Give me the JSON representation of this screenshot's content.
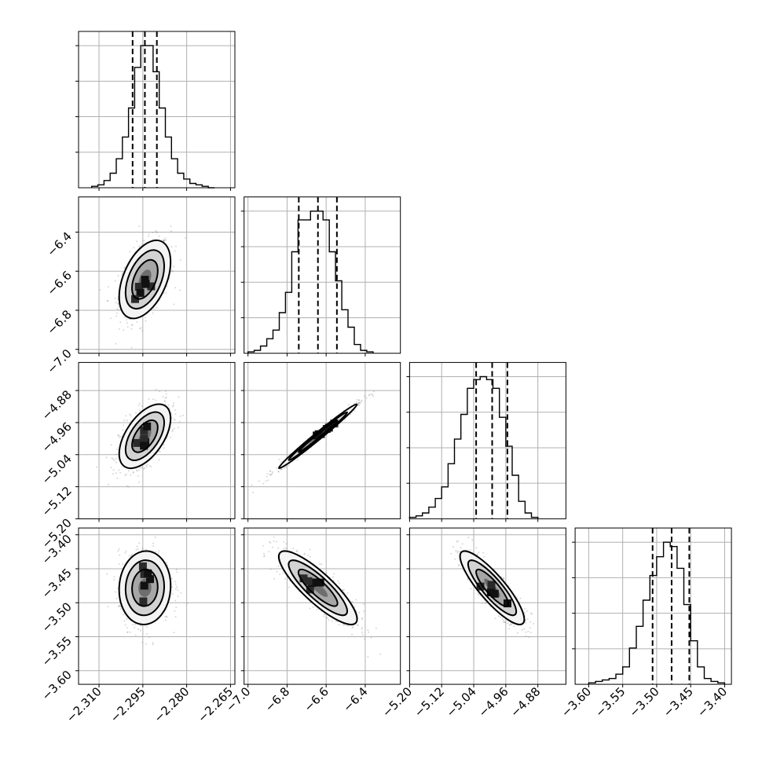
{
  "chart_data": {
    "type": "corner",
    "grid": true,
    "colors": {
      "line": "#000000",
      "grid": "#b0b0b0",
      "points": "#8c8c8c",
      "background": "#ffffff"
    },
    "quantile_levels": [
      0.16,
      0.5,
      0.84
    ],
    "parameters": [
      {
        "range": [
          -2.317,
          -2.2635
        ],
        "ticks": [
          -2.31,
          -2.295,
          -2.28,
          -2.265
        ],
        "tick_labels": [
          "−2.310",
          "−2.295",
          "−2.280",
          "−2.265"
        ],
        "quantiles": [
          -2.2985,
          -2.2943,
          -2.2902
        ],
        "histogram": {
          "bin_edges": [
            -2.3125,
            -2.3104,
            -2.3083,
            -2.3062,
            -2.3041,
            -2.302,
            -2.2999,
            -2.2978,
            -2.2957,
            -2.2936,
            -2.2915,
            -2.2894,
            -2.2873,
            -2.2852,
            -2.2831,
            -2.281,
            -2.2789,
            -2.2768,
            -2.2747,
            -2.2726,
            -2.2705
          ],
          "counts": [
            1,
            2,
            5,
            10,
            20,
            35,
            55,
            83,
            98,
            98,
            80,
            55,
            35,
            20,
            10,
            6,
            3,
            2,
            1,
            0
          ]
        }
      },
      {
        "range": [
          -7.02,
          -6.22
        ],
        "ticks": [
          -7.0,
          -6.8,
          -6.6,
          -6.4
        ],
        "tick_labels": [
          "−7.0",
          "−6.8",
          "−6.6",
          "−6.4"
        ],
        "quantiles": [
          -6.74,
          -6.642,
          -6.545
        ],
        "histogram": {
          "bin_edges": [
            -7.0,
            -6.968,
            -6.936,
            -6.904,
            -6.872,
            -6.84,
            -6.808,
            -6.776,
            -6.744,
            -6.712,
            -6.68,
            -6.648,
            -6.616,
            -6.584,
            -6.552,
            -6.52,
            -6.488,
            -6.456,
            -6.424,
            -6.392,
            -6.36
          ],
          "counts": [
            1,
            2,
            5,
            10,
            16,
            28,
            42,
            70,
            92,
            92,
            98,
            98,
            92,
            70,
            50,
            30,
            18,
            6,
            2,
            1
          ]
        }
      },
      {
        "range": [
          -5.2,
          -4.81
        ],
        "ticks": [
          -5.2,
          -5.12,
          -5.04,
          -4.96,
          -4.88
        ],
        "tick_labels": [
          "−5.20",
          "−5.12",
          "−5.04",
          "−4.96",
          "−4.88"
        ],
        "quantiles": [
          -5.034,
          -4.994,
          -4.956
        ],
        "histogram": {
          "bin_edges": [
            -5.2,
            -5.184,
            -5.168,
            -5.152,
            -5.136,
            -5.12,
            -5.104,
            -5.088,
            -5.072,
            -5.056,
            -5.04,
            -5.024,
            -5.008,
            -4.992,
            -4.976,
            -4.96,
            -4.944,
            -4.928,
            -4.912,
            -4.896,
            -4.88
          ],
          "counts": [
            1,
            2,
            4,
            8,
            14,
            22,
            38,
            55,
            72,
            90,
            96,
            98,
            96,
            90,
            70,
            50,
            30,
            12,
            4,
            1
          ]
        }
      },
      {
        "range": [
          -3.62,
          -3.39
        ],
        "ticks": [
          -3.6,
          -3.55,
          -3.5,
          -3.45,
          -3.4
        ],
        "tick_labels": [
          "−3.60",
          "−3.55",
          "−3.50",
          "−3.45",
          "−3.40"
        ],
        "quantiles": [
          -3.506,
          -3.478,
          -3.452
        ],
        "histogram": {
          "bin_edges": [
            -3.6,
            -3.59,
            -3.58,
            -3.57,
            -3.56,
            -3.55,
            -3.54,
            -3.53,
            -3.52,
            -3.51,
            -3.5,
            -3.49,
            -3.48,
            -3.47,
            -3.46,
            -3.45,
            -3.44,
            -3.43,
            -3.42,
            -3.41,
            -3.4
          ],
          "counts": [
            1,
            2,
            3,
            4,
            7,
            12,
            25,
            40,
            58,
            75,
            88,
            98,
            95,
            80,
            55,
            30,
            12,
            4,
            2,
            1
          ]
        }
      }
    ],
    "pairs": [
      {
        "x": 0,
        "y": 1,
        "cx": -2.2943,
        "cy": -6.642,
        "sx": 0.0044,
        "sy": 0.1,
        "rho": 0.45
      },
      {
        "x": 0,
        "y": 2,
        "cx": -2.2943,
        "cy": -4.994,
        "sx": 0.0044,
        "sy": 0.04,
        "rho": 0.55
      },
      {
        "x": 1,
        "y": 2,
        "cx": -6.642,
        "cy": -4.994,
        "sx": 0.1,
        "sy": 0.04,
        "rho": 0.99
      },
      {
        "x": 0,
        "y": 3,
        "cx": -2.2943,
        "cy": -3.478,
        "sx": 0.0044,
        "sy": 0.027,
        "rho": 0.05
      },
      {
        "x": 1,
        "y": 3,
        "cx": -6.642,
        "cy": -3.478,
        "sx": 0.1,
        "sy": 0.027,
        "rho": -0.85
      },
      {
        "x": 2,
        "y": 3,
        "cx": -4.994,
        "cy": -3.478,
        "sx": 0.04,
        "sy": 0.027,
        "rho": -0.86
      }
    ]
  }
}
